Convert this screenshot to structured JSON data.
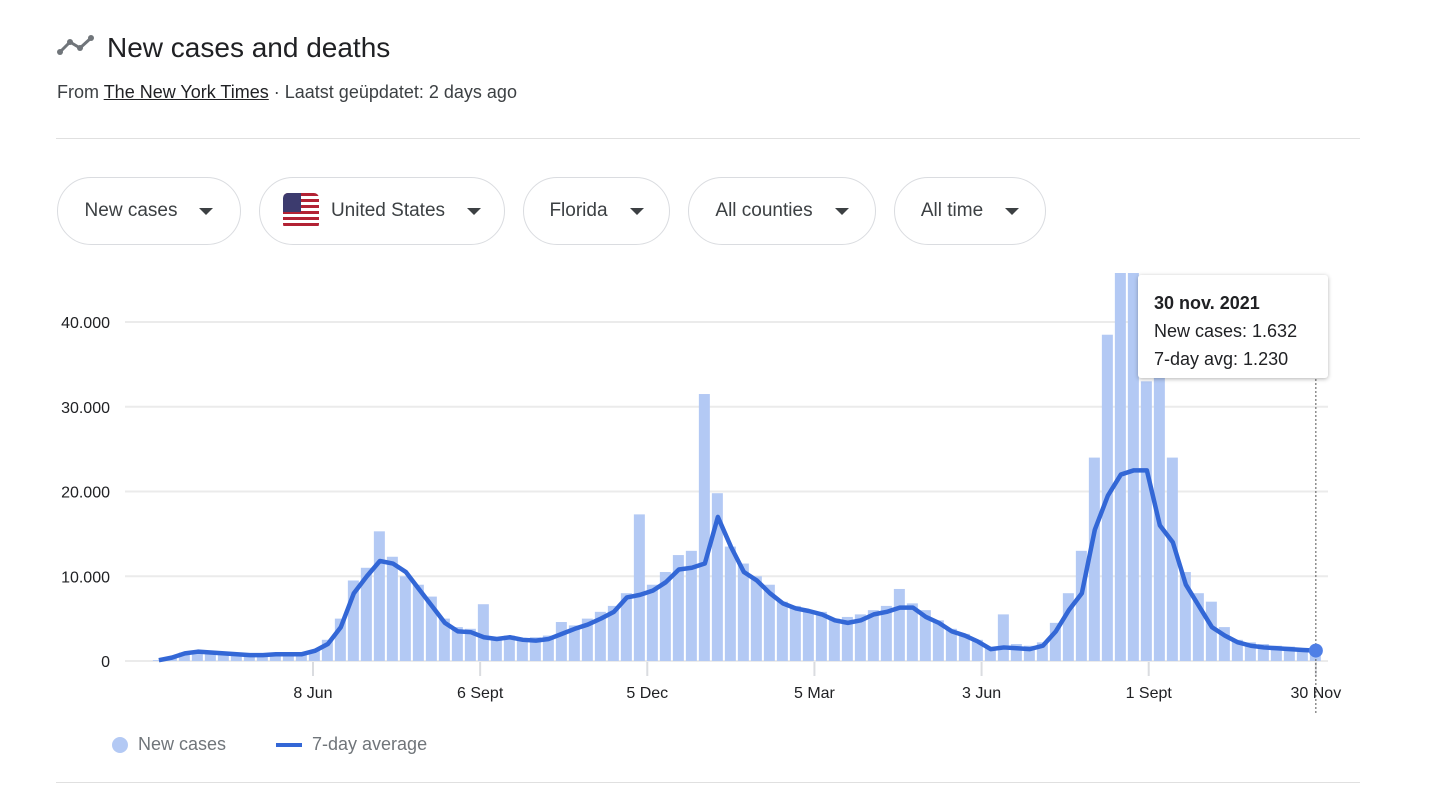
{
  "header": {
    "title": "New cases and deaths",
    "icon": "trending-line-icon",
    "source_prefix": "From",
    "source_link": "The New York Times",
    "updated": "· Laatst geüpdatet: 2 days ago"
  },
  "filters": [
    {
      "label": "New cases"
    },
    {
      "label": "United States",
      "icon": "us-flag-icon"
    },
    {
      "label": "Florida"
    },
    {
      "label": "All counties"
    },
    {
      "label": "All time"
    }
  ],
  "tooltip": {
    "date": "30 nov. 2021",
    "new_cases": "New cases: 1.632",
    "avg": "7-day avg: 1.230"
  },
  "legend": {
    "new_cases": "New cases",
    "avg": "7-day average"
  },
  "colors": {
    "bars": "#b3c9f4",
    "line": "#3367d6",
    "dot": "#4f7fe6"
  },
  "chart_data": {
    "type": "bar+line",
    "ylim": [
      0,
      46000
    ],
    "grid": true,
    "legend_position": "bottom-left",
    "y_ticks": [
      "0",
      "10.000",
      "20.000",
      "30.000",
      "40.000"
    ],
    "y_tick_values": [
      0,
      10000,
      20000,
      30000,
      40000
    ],
    "x_ticks": [
      {
        "label": "8 Jun",
        "date": "2020-06-08"
      },
      {
        "label": "6 Sept",
        "date": "2020-09-06"
      },
      {
        "label": "5 Dec",
        "date": "2020-12-05"
      },
      {
        "label": "5 Mar",
        "date": "2021-03-05"
      },
      {
        "label": "3 Jun",
        "date": "2021-06-03"
      },
      {
        "label": "1 Sept",
        "date": "2021-09-01"
      },
      {
        "label": "30 Nov",
        "date": "2021-11-30"
      }
    ],
    "dates": [
      "2020-03-17",
      "2020-03-24",
      "2020-03-31",
      "2020-04-07",
      "2020-04-14",
      "2020-04-21",
      "2020-04-28",
      "2020-05-05",
      "2020-05-12",
      "2020-05-19",
      "2020-05-26",
      "2020-06-02",
      "2020-06-09",
      "2020-06-16",
      "2020-06-23",
      "2020-06-30",
      "2020-07-07",
      "2020-07-14",
      "2020-07-21",
      "2020-07-28",
      "2020-08-04",
      "2020-08-11",
      "2020-08-18",
      "2020-08-25",
      "2020-09-01",
      "2020-09-08",
      "2020-09-15",
      "2020-09-22",
      "2020-09-29",
      "2020-10-06",
      "2020-10-13",
      "2020-10-20",
      "2020-10-27",
      "2020-11-03",
      "2020-11-10",
      "2020-11-17",
      "2020-11-24",
      "2020-12-01",
      "2020-12-08",
      "2020-12-15",
      "2020-12-22",
      "2020-12-29",
      "2021-01-05",
      "2021-01-12",
      "2021-01-19",
      "2021-01-26",
      "2021-02-02",
      "2021-02-09",
      "2021-02-16",
      "2021-02-23",
      "2021-03-02",
      "2021-03-09",
      "2021-03-16",
      "2021-03-23",
      "2021-03-30",
      "2021-04-06",
      "2021-04-13",
      "2021-04-20",
      "2021-04-27",
      "2021-05-04",
      "2021-05-11",
      "2021-05-18",
      "2021-05-25",
      "2021-06-01",
      "2021-06-08",
      "2021-06-15",
      "2021-06-22",
      "2021-06-29",
      "2021-07-06",
      "2021-07-13",
      "2021-07-20",
      "2021-07-27",
      "2021-08-03",
      "2021-08-10",
      "2021-08-17",
      "2021-08-24",
      "2021-08-31",
      "2021-09-07",
      "2021-09-14",
      "2021-09-21",
      "2021-09-28",
      "2021-10-05",
      "2021-10-12",
      "2021-10-19",
      "2021-10-26",
      "2021-11-02",
      "2021-11-09",
      "2021-11-16",
      "2021-11-23",
      "2021-11-30"
    ],
    "series": [
      {
        "name": "New cases",
        "type": "bar",
        "values": [
          100,
          500,
          1000,
          1200,
          1100,
          900,
          900,
          700,
          800,
          800,
          900,
          900,
          1300,
          2500,
          5000,
          9500,
          11000,
          15300,
          12300,
          10000,
          9000,
          7600,
          5000,
          4000,
          3800,
          6700,
          2800,
          3000,
          2600,
          2800,
          3000,
          4600,
          4200,
          5000,
          5800,
          6500,
          8000,
          17300,
          9000,
          10500,
          12500,
          13000,
          31500,
          19800,
          13500,
          11500,
          10000,
          9000,
          7000,
          6500,
          6000,
          5800,
          5000,
          5200,
          5500,
          6000,
          6500,
          8500,
          6800,
          6000,
          4800,
          3800,
          3200,
          2500,
          1500,
          5500,
          2000,
          1800,
          2200,
          4500,
          8000,
          13000,
          24000,
          38500,
          46000,
          46000,
          33000,
          34000,
          24000,
          10500,
          8000,
          7000,
          4000,
          2500,
          2200,
          2000,
          1800,
          1700,
          1500,
          1632
        ]
      },
      {
        "name": "7-day average",
        "type": "line",
        "values": [
          100,
          400,
          900,
          1100,
          1000,
          900,
          800,
          700,
          700,
          800,
          800,
          800,
          1200,
          2000,
          4000,
          8000,
          10000,
          11800,
          11500,
          10500,
          8500,
          6500,
          4500,
          3500,
          3400,
          2800,
          2600,
          2800,
          2500,
          2400,
          2600,
          3200,
          3800,
          4300,
          5000,
          5800,
          7500,
          7800,
          8300,
          9300,
          10800,
          11000,
          11500,
          17000,
          13500,
          10500,
          9500,
          8000,
          6800,
          6200,
          5900,
          5500,
          4800,
          4500,
          4800,
          5500,
          5800,
          6300,
          6300,
          5200,
          4500,
          3500,
          3000,
          2300,
          1400,
          1600,
          1500,
          1400,
          1800,
          3500,
          6000,
          8000,
          15500,
          19500,
          22000,
          22500,
          22500,
          16000,
          14000,
          9000,
          6500,
          4000,
          3000,
          2200,
          1800,
          1600,
          1500,
          1400,
          1300,
          1230
        ]
      }
    ]
  }
}
